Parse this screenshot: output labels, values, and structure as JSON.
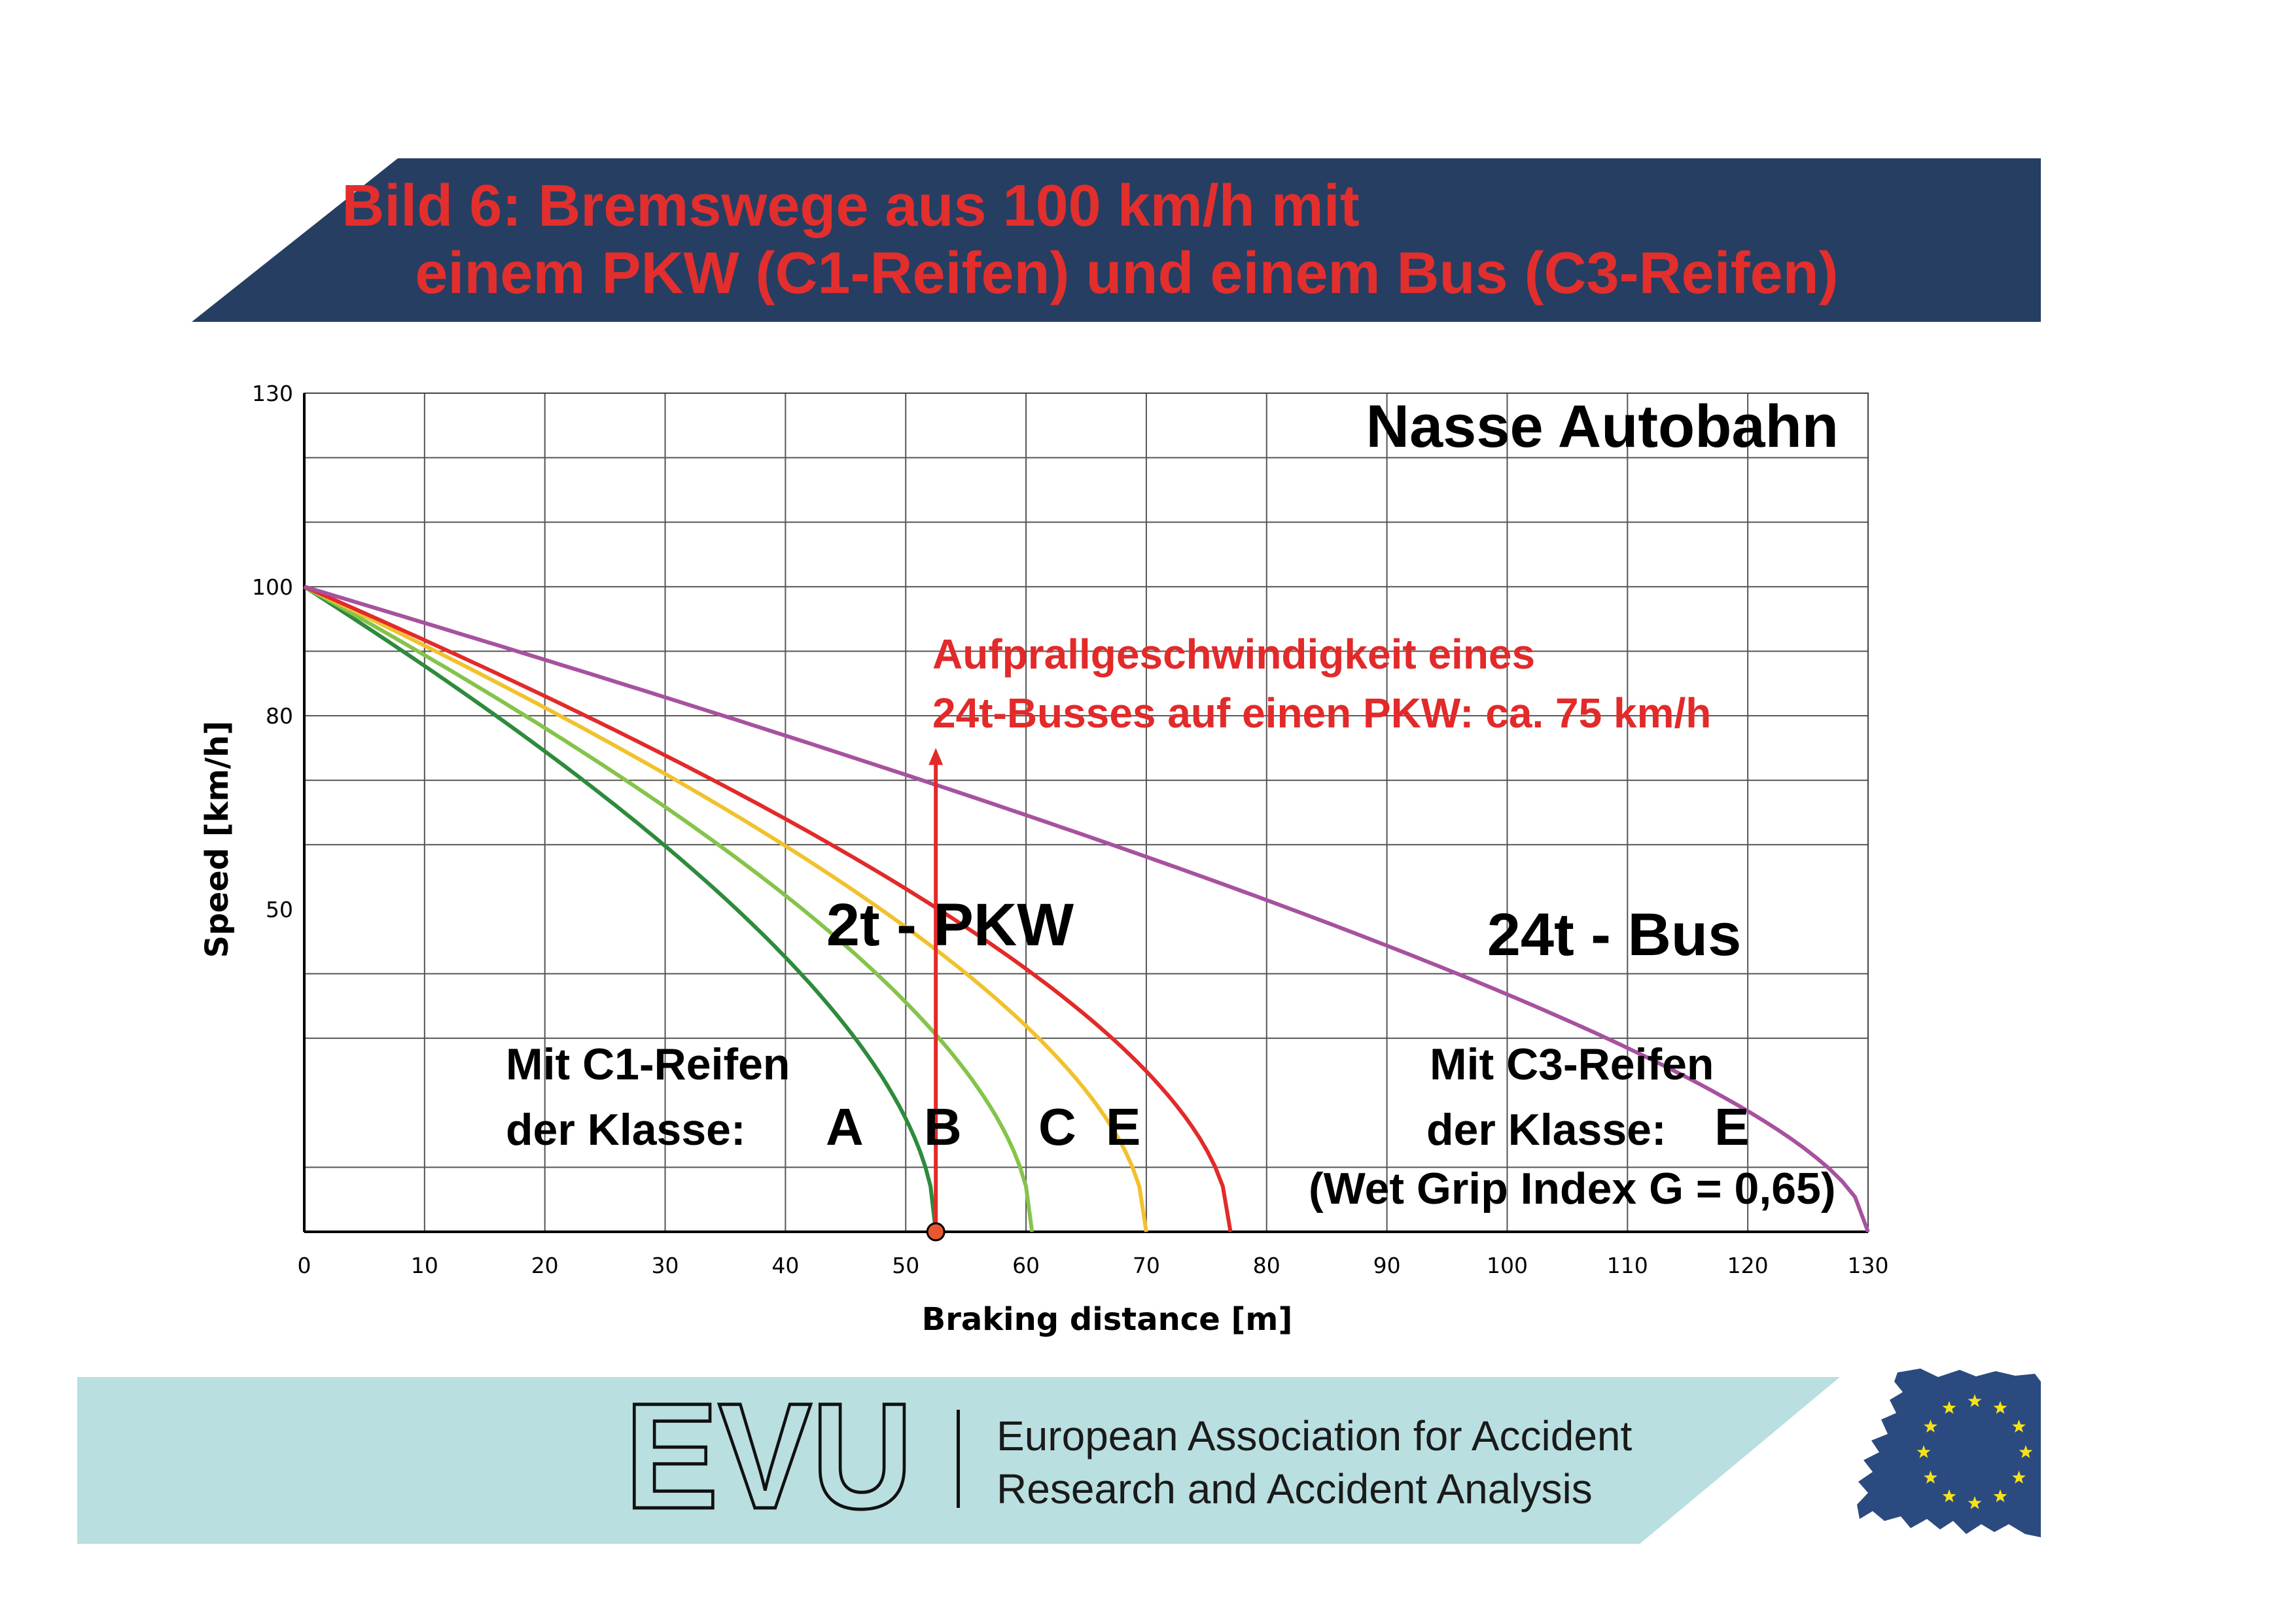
{
  "header": {
    "title_line1": "Bild 6: Bremswege aus 100 km/h mit",
    "title_line2": "einem PKW (C1-Reifen) und einem Bus (C3-Reifen)",
    "band_color": "#263e61",
    "title_color": "#e22e2d"
  },
  "chart_data": {
    "type": "line",
    "title": "Nasse Autobahn",
    "xlabel": "Braking distance [m]",
    "ylabel": "Speed [km/h]",
    "xlim": [
      0,
      130
    ],
    "ylim": [
      0,
      130
    ],
    "x_ticks": [
      "0",
      "10",
      "20",
      "30",
      "40",
      "50",
      "60",
      "70",
      "80",
      "90",
      "100",
      "110",
      "120",
      "130"
    ],
    "y_ticks": [
      {
        "value": 130,
        "label": "130"
      },
      {
        "value": 100,
        "label": "100"
      },
      {
        "value": 80,
        "label": "80"
      },
      {
        "value": 50,
        "label": "50"
      }
    ],
    "grid": true,
    "series": [
      {
        "name": "A",
        "color": "#2e8b3e",
        "stop": 52.5,
        "v0": 100
      },
      {
        "name": "B",
        "color": "#86c34a",
        "stop": 60.5,
        "v0": 100
      },
      {
        "name": "C",
        "color": "#f2c22e",
        "stop": 70.0,
        "v0": 100
      },
      {
        "name": "E",
        "color": "#e32a2a",
        "stop": 77.0,
        "v0": 100
      },
      {
        "name": "E",
        "color": "#a7529f",
        "stop": 130.0,
        "v0": 100
      }
    ],
    "marker": {
      "x": 52.5,
      "y_from": 0,
      "y_to": 75,
      "color": "#e32a2a",
      "dot_color": "#e8572f"
    },
    "annotations": {
      "impact_line1": "Aufprallgeschwindigkeit eines",
      "impact_line2": "24t-Busses auf einen PKW: ca. 75 km/h",
      "pkw_label": "2t - PKW",
      "bus_label": "24t - Bus",
      "c1_line1": "Mit C1-Reifen",
      "c1_line2": "der Klasse:",
      "c1_classes": [
        "A",
        "B",
        "C",
        "E"
      ],
      "c3_line1": "Mit C3-Reifen",
      "c3_line2": "der Klasse:",
      "c3_class": "E",
      "wet_grip": "(Wet Grip Index G = 0,65)"
    }
  },
  "footer": {
    "logo_text": "EVU",
    "org_line1": "European Association for Accident",
    "org_line2": "Research and Accident Analysis",
    "band_color": "#b9dfe0",
    "map_color": "#2a4a80",
    "star_color": "#f5e21a",
    "map_icon": "europe-map-icon"
  }
}
